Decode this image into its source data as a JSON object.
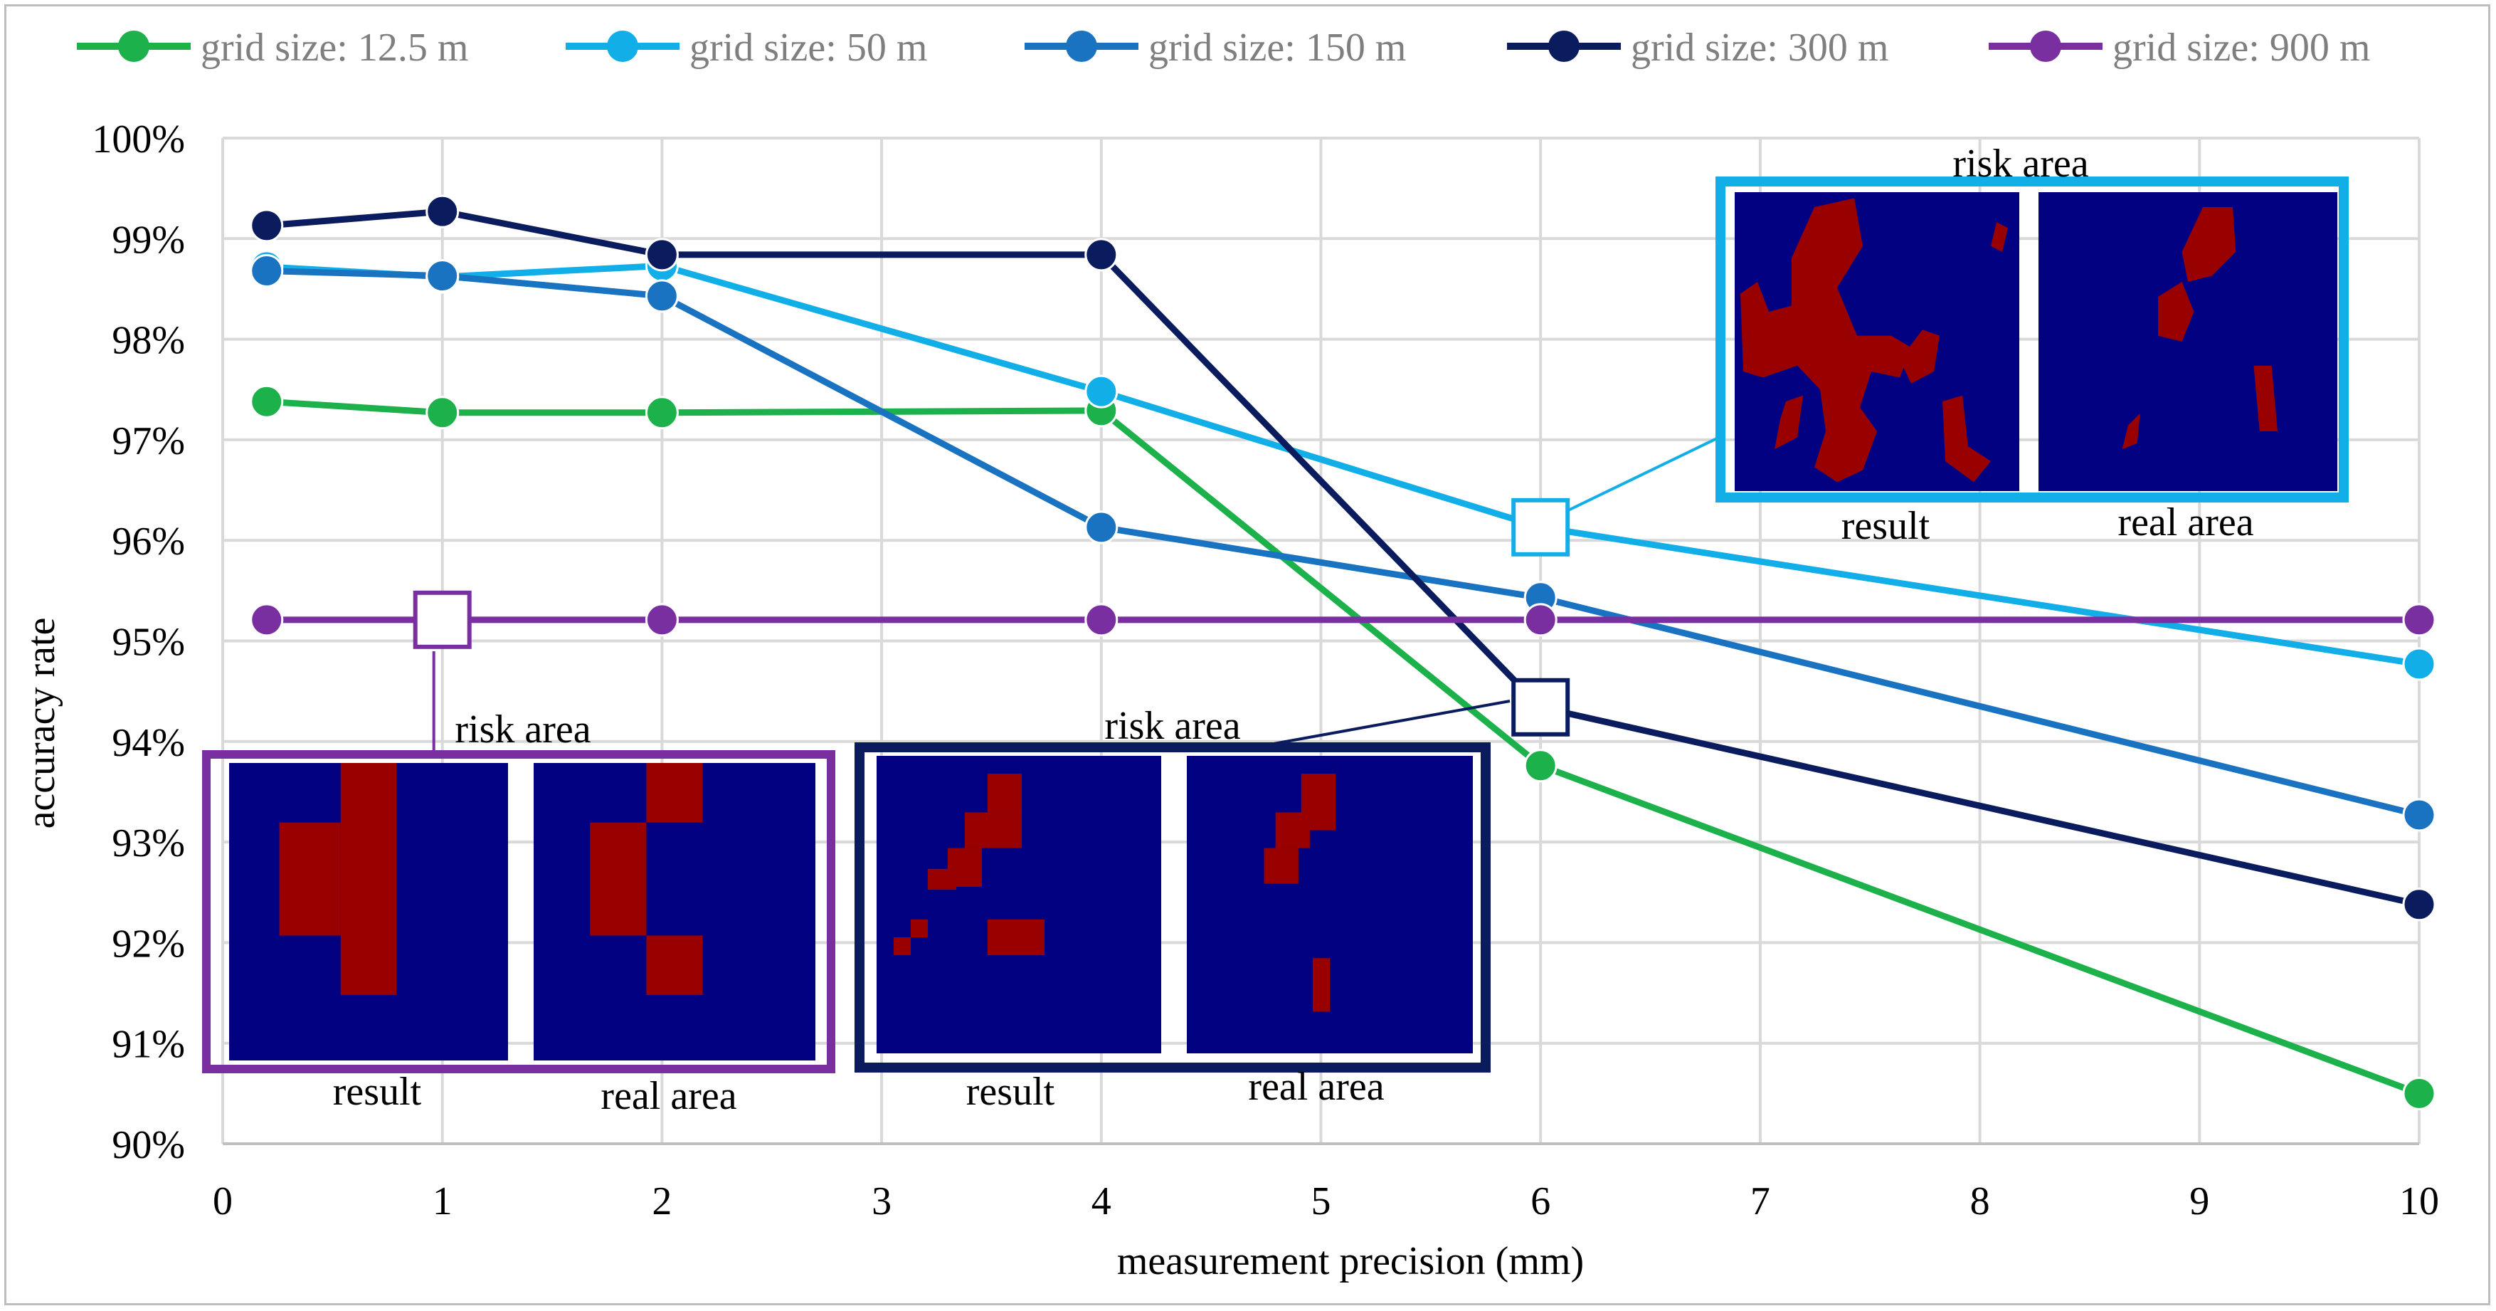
{
  "chart_data": {
    "type": "line",
    "title": "",
    "xlabel": "measurement precision (mm)",
    "ylabel": "accuracy rate",
    "xlim": [
      0,
      10
    ],
    "ylim": [
      90,
      100
    ],
    "x_ticks": [
      0,
      1,
      2,
      3,
      4,
      5,
      6,
      7,
      8,
      9,
      10
    ],
    "y_ticks": [
      90,
      91,
      92,
      93,
      94,
      95,
      96,
      97,
      98,
      99,
      100
    ],
    "y_tick_format": "percent",
    "grid": true,
    "legend_position": "top",
    "x": [
      0.2,
      1,
      2,
      4,
      6,
      10
    ],
    "series": [
      {
        "name": "grid size: 12.5 m",
        "color": "#1db14b",
        "values": [
          97.38,
          97.27,
          97.27,
          97.29,
          93.76,
          90.5
        ]
      },
      {
        "name": "grid size: 50 m",
        "color": "#12aee7",
        "values": [
          98.72,
          98.62,
          98.73,
          97.48,
          96.13,
          94.77
        ]
      },
      {
        "name": "grid size: 150 m",
        "color": "#1a73c1",
        "values": [
          98.68,
          98.63,
          98.43,
          96.13,
          95.43,
          93.27
        ]
      },
      {
        "name": "grid size: 300 m",
        "color": "#0b1c5e",
        "values": [
          99.13,
          99.27,
          98.84,
          98.84,
          94.34,
          92.38
        ]
      },
      {
        "name": "grid size: 900 m",
        "color": "#7a2fa0",
        "values": [
          95.21,
          95.21,
          95.21,
          95.21,
          95.21,
          95.21
        ]
      }
    ],
    "annotations": [
      {
        "series": "grid size: 50 m",
        "x": 6,
        "y": 96.13,
        "label": "risk area",
        "panels": [
          "result",
          "real area"
        ],
        "color": "#12aee7"
      },
      {
        "series": "grid size: 900 m",
        "x": 1,
        "y": 95.21,
        "label": "risk area",
        "panels": [
          "result",
          "real area"
        ],
        "color": "#7a2fa0"
      },
      {
        "series": "grid size: 300 m",
        "x": 6,
        "y": 94.34,
        "label": "risk area",
        "panels": [
          "result",
          "real area"
        ],
        "color": "#0b1c5e"
      }
    ]
  },
  "colors": {
    "map_background": "#000080",
    "map_risk": "#990000",
    "grid": "#d9d9d9"
  }
}
